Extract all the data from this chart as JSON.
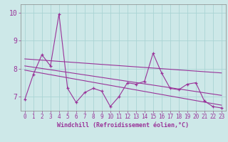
{
  "xlabel": "Windchill (Refroidissement éolien,°C)",
  "background_color": "#cde8e8",
  "line_color": "#993399",
  "grid_color": "#aad4d4",
  "xlim": [
    -0.5,
    23.5
  ],
  "ylim": [
    6.5,
    10.3
  ],
  "yticks": [
    7,
    8,
    9,
    10
  ],
  "xticks": [
    0,
    1,
    2,
    3,
    4,
    5,
    6,
    7,
    8,
    9,
    10,
    11,
    12,
    13,
    14,
    15,
    16,
    17,
    18,
    19,
    20,
    21,
    22,
    23
  ],
  "series1_x": [
    0,
    1,
    2,
    3,
    4,
    5,
    6,
    7,
    8,
    9,
    10,
    11,
    12,
    13,
    14,
    15,
    16,
    17,
    18,
    19,
    20,
    21,
    22,
    23
  ],
  "series1_y": [
    6.9,
    7.8,
    8.5,
    8.1,
    9.95,
    7.3,
    6.8,
    7.15,
    7.3,
    7.2,
    6.65,
    7.0,
    7.5,
    7.45,
    7.55,
    8.55,
    7.85,
    7.3,
    7.25,
    7.45,
    7.5,
    6.85,
    6.65,
    6.6
  ],
  "trend1_x": [
    0,
    23
  ],
  "trend1_y": [
    8.35,
    7.85
  ],
  "trend2_x": [
    0,
    23
  ],
  "trend2_y": [
    8.1,
    7.05
  ],
  "trend3_x": [
    0,
    23
  ],
  "trend3_y": [
    7.95,
    6.7
  ]
}
